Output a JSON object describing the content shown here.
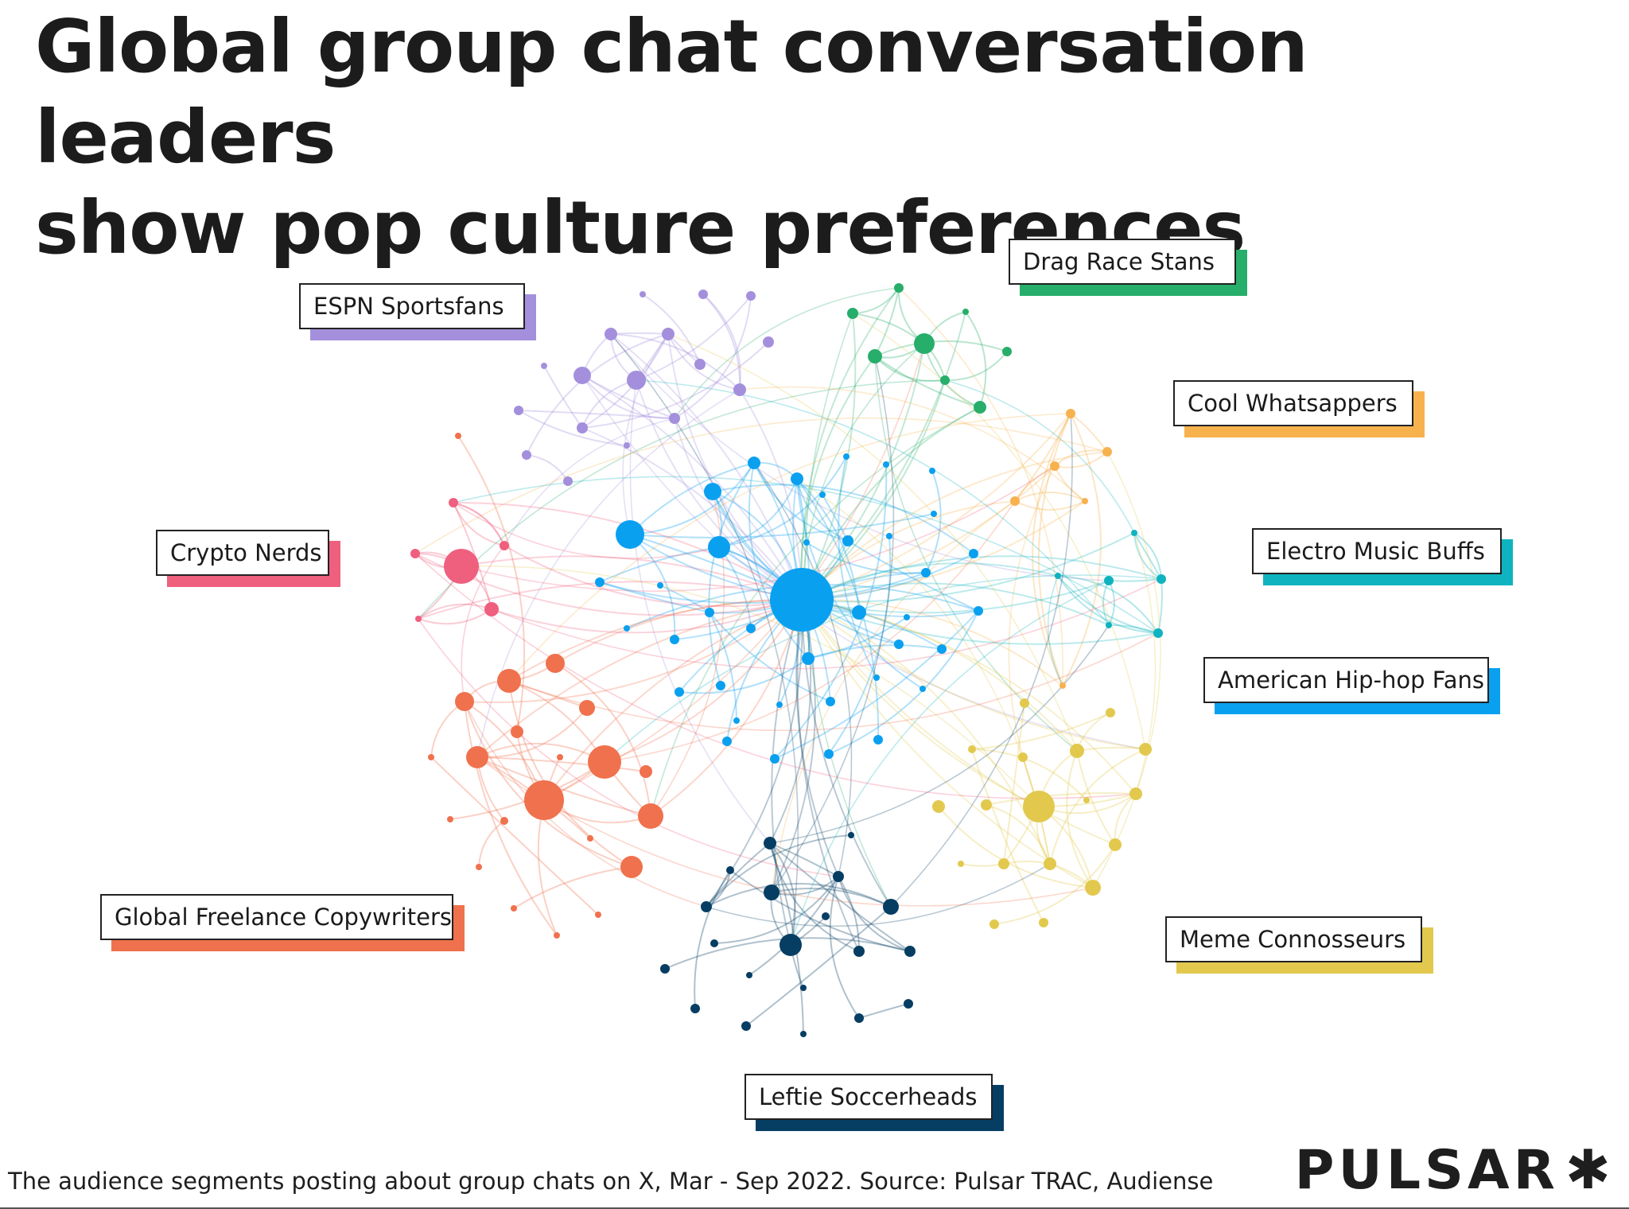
{
  "title": {
    "line1": "Global group chat conversation leaders",
    "line2": "show pop culture preferences"
  },
  "segments": [
    {
      "id": "espn",
      "label": "ESPN Sportsfans",
      "color": "#a48fdc"
    },
    {
      "id": "drag",
      "label": "Drag Race Stans",
      "color": "#27ae6a"
    },
    {
      "id": "whatsapp",
      "label": "Cool Whatsappers",
      "color": "#f7b24e"
    },
    {
      "id": "electro",
      "label": "Electro Music Buffs",
      "color": "#0fb3bf"
    },
    {
      "id": "hiphop",
      "label": "American Hip-hop Fans",
      "color": "#0aa0f0"
    },
    {
      "id": "meme",
      "label": "Meme Connosseurs",
      "color": "#e2c94e"
    },
    {
      "id": "soccer",
      "label": "Leftie Soccerheads",
      "color": "#063d63"
    },
    {
      "id": "copywriters",
      "label": "Global Freelance Copywriters",
      "color": "#f0714d"
    },
    {
      "id": "crypto",
      "label": "Crypto Nerds",
      "color": "#ef5f7e"
    }
  ],
  "caption": "The audience segments posting about group chats on X, Mar - Sep 2022. Source: Pulsar TRAC, Audiense",
  "logo": {
    "text": "PULSAR",
    "mark": "✱"
  }
}
